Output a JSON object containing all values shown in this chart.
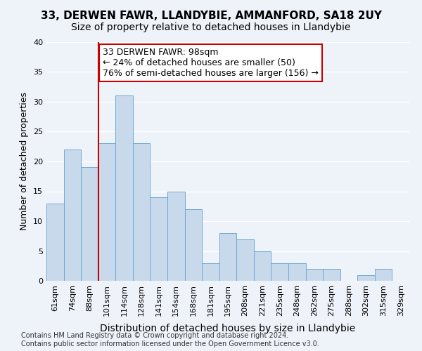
{
  "title1": "33, DERWEN FAWR, LLANDYBIE, AMMANFORD, SA18 2UY",
  "title2": "Size of property relative to detached houses in Llandybie",
  "xlabel": "Distribution of detached houses by size in Llandybie",
  "ylabel": "Number of detached properties",
  "categories": [
    "61sqm",
    "74sqm",
    "88sqm",
    "101sqm",
    "114sqm",
    "128sqm",
    "141sqm",
    "154sqm",
    "168sqm",
    "181sqm",
    "195sqm",
    "208sqm",
    "221sqm",
    "235sqm",
    "248sqm",
    "262sqm",
    "275sqm",
    "288sqm",
    "302sqm",
    "315sqm",
    "329sqm"
  ],
  "values": [
    13,
    22,
    19,
    23,
    31,
    23,
    14,
    15,
    12,
    3,
    8,
    7,
    5,
    3,
    3,
    2,
    2,
    0,
    1,
    2,
    0
  ],
  "bar_color": "#c9d9ec",
  "bar_edge_color": "#6fa8d6",
  "annotation_line1": "33 DERWEN FAWR: 98sqm",
  "annotation_line2": "← 24% of detached houses are smaller (50)",
  "annotation_line3": "76% of semi-detached houses are larger (156) →",
  "annotation_box_color": "#ffffff",
  "annotation_box_edge_color": "#cc0000",
  "vline_color": "#cc0000",
  "vline_x_index": 3,
  "ylim": [
    0,
    40
  ],
  "yticks": [
    0,
    5,
    10,
    15,
    20,
    25,
    30,
    35,
    40
  ],
  "background_color": "#eef3f9",
  "axes_bg_color": "#eef3f9",
  "grid_color": "#ffffff",
  "footer_text": "Contains HM Land Registry data © Crown copyright and database right 2024.\nContains public sector information licensed under the Open Government Licence v3.0.",
  "title1_fontsize": 11,
  "title2_fontsize": 10,
  "xlabel_fontsize": 10,
  "ylabel_fontsize": 9,
  "tick_fontsize": 8,
  "annotation_fontsize": 9,
  "footer_fontsize": 7
}
